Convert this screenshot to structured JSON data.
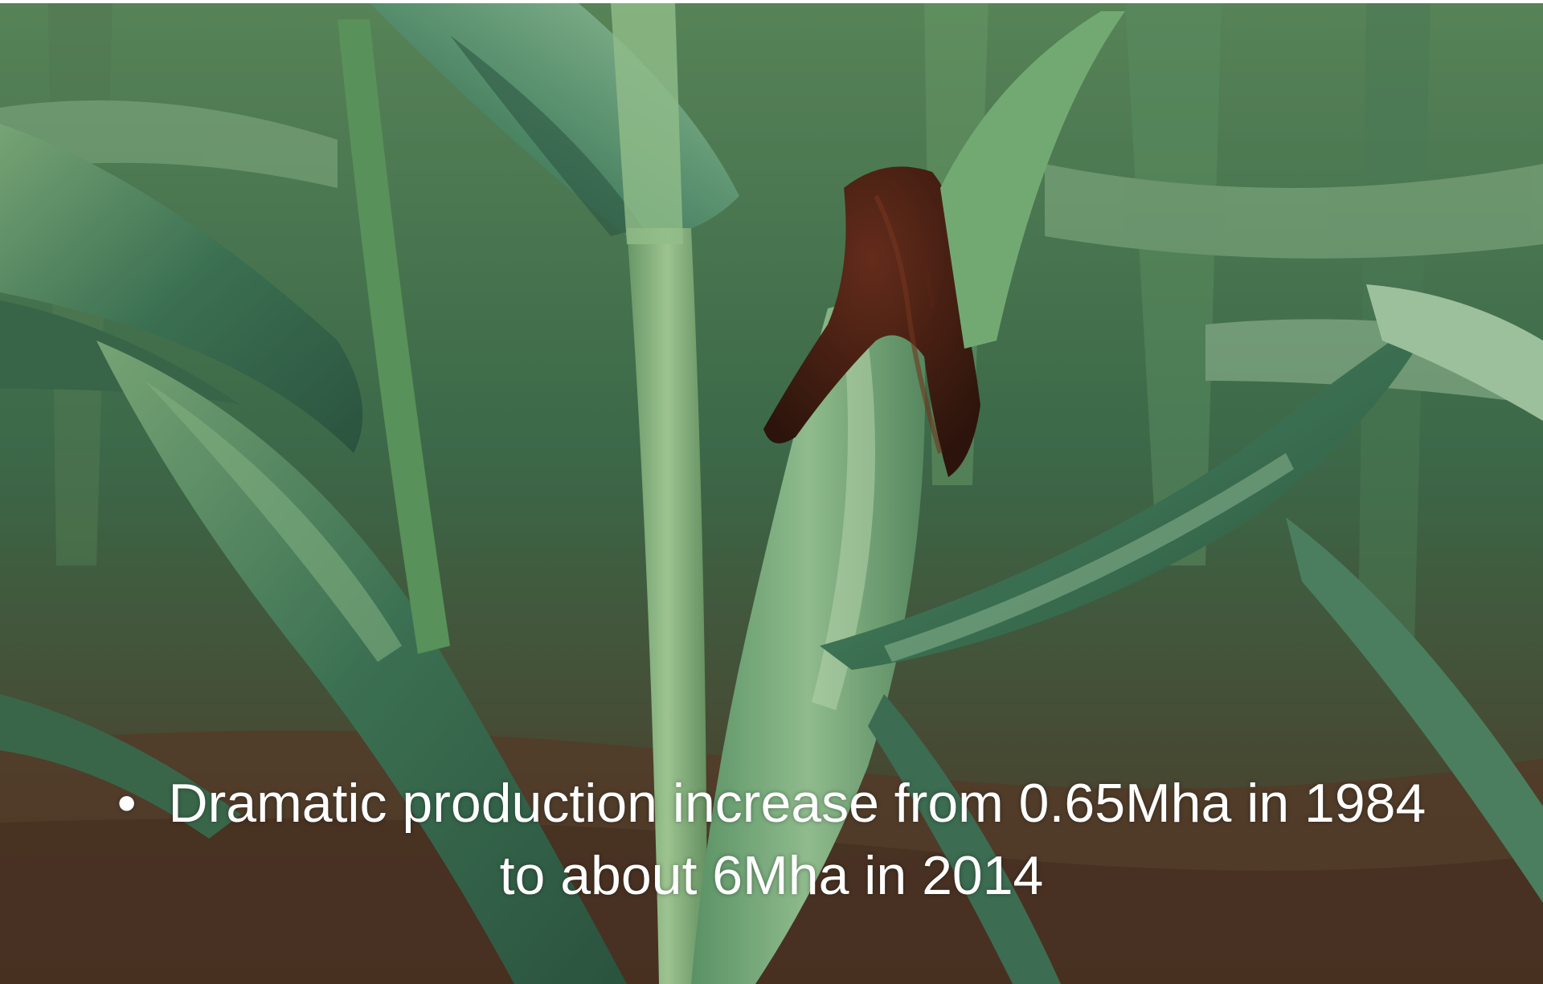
{
  "slide": {
    "bullet_symbol": "•",
    "text_line_1": "Dramatic production increase from 0.65Mha in 1984",
    "text_line_2": "to about 6Mha in 2014"
  },
  "photo": {
    "subject": "corn-field",
    "colors": {
      "leaf_dark": "#2f5a44",
      "leaf_mid": "#4f8a63",
      "leaf_light": "#8fbf8a",
      "silk": "#4a1e12",
      "soil": "#5a3a28"
    }
  }
}
